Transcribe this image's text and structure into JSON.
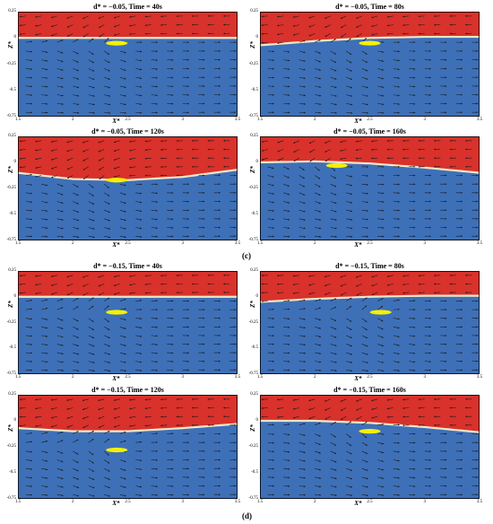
{
  "colors": {
    "upper_fluid": "#d9312b",
    "lower_fluid": "#3e70b8",
    "interface": "#f2e8c6",
    "object": "#f4f000",
    "arrow": "#1a1a1a"
  },
  "axis": {
    "x_label": "X*",
    "y_label": "Z*",
    "x_range": [
      1.5,
      3.5
    ],
    "y_range": [
      -0.75,
      0.25
    ],
    "x_ticks": [
      "1.5",
      "2",
      "2.5",
      "3",
      "3.5"
    ],
    "y_ticks": [
      "0.25",
      "0",
      "-0.25",
      "-0.5",
      "-0.75"
    ],
    "x_tick_values": [
      1.5,
      2,
      2.5,
      3,
      3.5
    ],
    "y_tick_values": [
      0.25,
      0,
      -0.25,
      -0.5,
      -0.75
    ]
  },
  "groups": [
    {
      "label": "(c)",
      "panels": [
        {
          "title": "d* = −0.05, Time = 40s",
          "interface_profile": [
            [
              1.5,
              0.0
            ],
            [
              2.5,
              0.0
            ],
            [
              3.5,
              0.0
            ]
          ],
          "object": {
            "x": 2.4,
            "z": -0.05
          }
        },
        {
          "title": "d* = −0.05, Time = 80s",
          "interface_profile": [
            [
              1.5,
              -0.07
            ],
            [
              2.0,
              -0.03
            ],
            [
              2.5,
              0.0
            ],
            [
              3.0,
              0.01
            ],
            [
              3.5,
              0.01
            ]
          ],
          "object": {
            "x": 2.5,
            "z": -0.05
          }
        },
        {
          "title": "d* = −0.05, Time = 120s",
          "interface_profile": [
            [
              1.5,
              -0.1
            ],
            [
              2.0,
              -0.16
            ],
            [
              2.5,
              -0.17
            ],
            [
              3.0,
              -0.14
            ],
            [
              3.5,
              -0.07
            ]
          ],
          "object": {
            "x": 2.4,
            "z": -0.17
          }
        },
        {
          "title": "d* = −0.05, Time = 160s",
          "interface_profile": [
            [
              1.5,
              0.0
            ],
            [
              2.0,
              0.01
            ],
            [
              2.5,
              -0.01
            ],
            [
              3.0,
              -0.05
            ],
            [
              3.5,
              -0.1
            ]
          ],
          "object": {
            "x": 2.2,
            "z": -0.03
          }
        }
      ]
    },
    {
      "label": "(d)",
      "panels": [
        {
          "title": "d* = −0.15, Time = 40s",
          "interface_profile": [
            [
              1.5,
              0.0
            ],
            [
              2.5,
              0.0
            ],
            [
              3.5,
              0.0
            ]
          ],
          "object": {
            "x": 2.4,
            "z": -0.15
          }
        },
        {
          "title": "d* = −0.15, Time = 80s",
          "interface_profile": [
            [
              1.5,
              -0.05
            ],
            [
              2.0,
              -0.02
            ],
            [
              2.5,
              0.0
            ],
            [
              3.0,
              0.01
            ],
            [
              3.5,
              0.01
            ]
          ],
          "object": {
            "x": 2.6,
            "z": -0.15
          }
        },
        {
          "title": "d* = −0.15, Time = 120s",
          "interface_profile": [
            [
              1.5,
              -0.07
            ],
            [
              2.0,
              -0.1
            ],
            [
              2.5,
              -0.1
            ],
            [
              3.0,
              -0.07
            ],
            [
              3.5,
              -0.03
            ]
          ],
          "object": {
            "x": 2.4,
            "z": -0.28
          }
        },
        {
          "title": "d* = −0.15, Time = 160s",
          "interface_profile": [
            [
              1.5,
              -0.0
            ],
            [
              2.0,
              0.0
            ],
            [
              2.5,
              -0.02
            ],
            [
              3.0,
              -0.06
            ],
            [
              3.5,
              -0.11
            ]
          ],
          "object": {
            "x": 2.5,
            "z": -0.1
          }
        }
      ]
    }
  ]
}
